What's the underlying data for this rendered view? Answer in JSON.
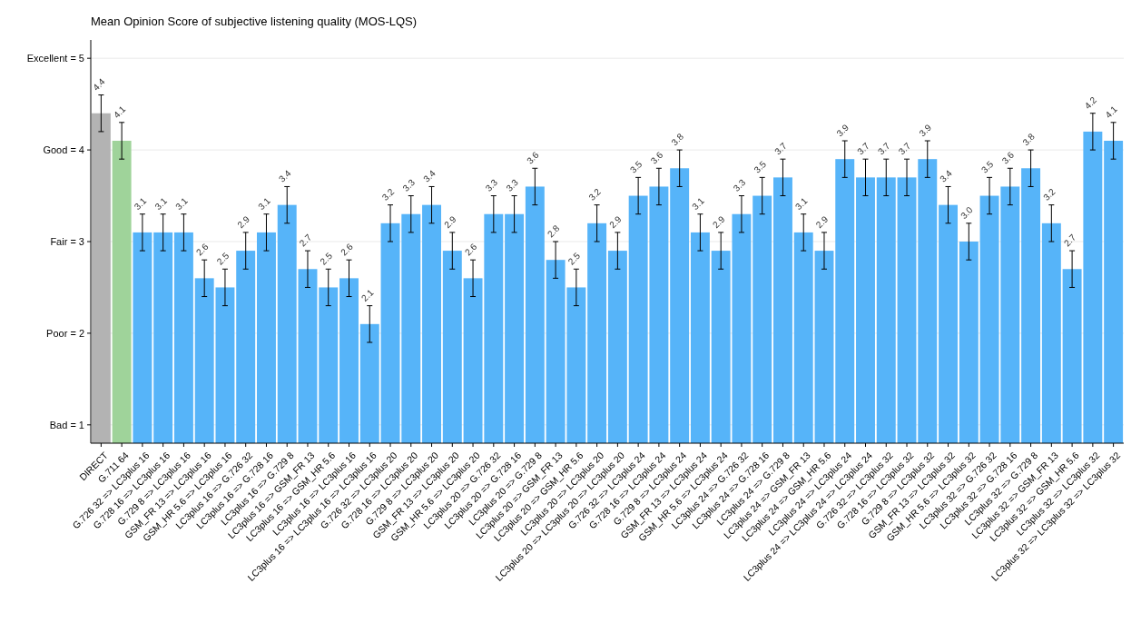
{
  "chart_data": {
    "type": "bar",
    "title": "Mean Opinion Score of subjective listening quality (MOS-LQS)",
    "categories": [
      "DIRECT",
      "G.711 64",
      "G.726 32 => LC3plus 16",
      "G.728 16 => LC3plus 16",
      "G.729 8 => LC3plus 16",
      "GSM_FR 13 => LC3plus 16",
      "GSM_HR 5.6 => LC3plus 16",
      "LC3plus 16 => G.726 32",
      "LC3plus 16 => G.728 16",
      "LC3plus 16 => G.729 8",
      "LC3plus 16 => GSM_FR 13",
      "LC3plus 16 => GSM_HR 5.6",
      "LC3plus 16 => LC3plus 16",
      "LC3plus 16 => LC3plus 16 => LC3plus 16",
      "G.726 32 => LC3plus 20",
      "G.728 16 => LC3plus 20",
      "G.729 8 => LC3plus 20",
      "GSM_FR 13 => LC3plus 20",
      "GSM_HR 5.6 => LC3plus 20",
      "LC3plus 20 => G.726 32",
      "LC3plus 20 => G.728 16",
      "LC3plus 20 => G.729 8",
      "LC3plus 20 => GSM_FR 13",
      "LC3plus 20 => GSM_HR 5.6",
      "LC3plus 20 => LC3plus 20",
      "LC3plus 20 => LC3plus 20 => LC3plus 20",
      "G.726 32 => LC3plus 24",
      "G.728 16 => LC3plus 24",
      "G.729 8 => LC3plus 24",
      "GSM_FR 13 => LC3plus 24",
      "GSM_HR 5.6 => LC3plus 24",
      "LC3plus 24 => G.726 32",
      "LC3plus 24 => G.728 16",
      "LC3plus 24 => G.729 8",
      "LC3plus 24 => GSM_FR 13",
      "LC3plus 24 => GSM_HR 5.6",
      "LC3plus 24 => LC3plus 24",
      "LC3plus 24 => LC3plus 24 => LC3plus 24",
      "G.726 32 => LC3plus 32",
      "G.728 16 => LC3plus 32",
      "G.729 8 => LC3plus 32",
      "GSM_FR 13 => LC3plus 32",
      "GSM_HR 5.6 => LC3plus 32",
      "LC3plus 32 => G.726 32",
      "LC3plus 32 => G.728 16",
      "LC3plus 32 => G.729 8",
      "LC3plus 32 => GSM_FR 13",
      "LC3plus 32 => GSM_HR 5.6",
      "LC3plus 32 => LC3plus 32",
      "LC3plus 32 => LC3plus 32 => LC3plus 32"
    ],
    "values": [
      4.4,
      4.1,
      3.1,
      3.1,
      3.1,
      2.6,
      2.5,
      2.9,
      3.1,
      3.4,
      2.7,
      2.5,
      2.6,
      2.1,
      3.2,
      3.3,
      3.4,
      2.9,
      2.6,
      3.3,
      3.3,
      3.6,
      2.8,
      2.5,
      3.2,
      2.9,
      3.5,
      3.6,
      3.8,
      3.1,
      2.9,
      3.3,
      3.5,
      3.7,
      3.1,
      2.9,
      3.9,
      3.7,
      3.7,
      3.7,
      3.9,
      3.4,
      3.0,
      3.5,
      3.6,
      3.8,
      3.2,
      2.7,
      4.2,
      4.1
    ],
    "value_labels": [
      "4.4",
      "4.1",
      "3.1",
      "3.1",
      "3.1",
      "2.6",
      "2.5",
      "2.9",
      "3.1",
      "3.4",
      "2.7",
      "2.5",
      "2.6",
      "2.1",
      "3.2",
      "3.3",
      "3.4",
      "2.9",
      "2.6",
      "3.3",
      "3.3",
      "3.6",
      "2.8",
      "2.5",
      "3.2",
      "2.9",
      "3.5",
      "3.6",
      "3.8",
      "3.1",
      "2.9",
      "3.3",
      "3.5",
      "3.7",
      "3.1",
      "2.9",
      "3.9",
      "3.7",
      "3.7",
      "3.7",
      "3.9",
      "3.4",
      "3.0",
      "3.5",
      "3.6",
      "3.8",
      "3.2",
      "2.7",
      "4.2",
      "4.1"
    ],
    "errors": [
      0.2,
      0.2,
      0.2,
      0.2,
      0.2,
      0.2,
      0.2,
      0.2,
      0.2,
      0.2,
      0.2,
      0.2,
      0.2,
      0.2,
      0.2,
      0.2,
      0.2,
      0.2,
      0.2,
      0.2,
      0.2,
      0.2,
      0.2,
      0.2,
      0.2,
      0.2,
      0.2,
      0.2,
      0.2,
      0.2,
      0.2,
      0.2,
      0.2,
      0.2,
      0.2,
      0.2,
      0.2,
      0.2,
      0.2,
      0.2,
      0.2,
      0.2,
      0.2,
      0.2,
      0.2,
      0.2,
      0.2,
      0.2,
      0.2,
      0.2
    ],
    "colors": [
      "#b3b3b3",
      "#9fd39a",
      "#56b4f9",
      "#56b4f9",
      "#56b4f9",
      "#56b4f9",
      "#56b4f9",
      "#56b4f9",
      "#56b4f9",
      "#56b4f9",
      "#56b4f9",
      "#56b4f9",
      "#56b4f9",
      "#56b4f9",
      "#56b4f9",
      "#56b4f9",
      "#56b4f9",
      "#56b4f9",
      "#56b4f9",
      "#56b4f9",
      "#56b4f9",
      "#56b4f9",
      "#56b4f9",
      "#56b4f9",
      "#56b4f9",
      "#56b4f9",
      "#56b4f9",
      "#56b4f9",
      "#56b4f9",
      "#56b4f9",
      "#56b4f9",
      "#56b4f9",
      "#56b4f9",
      "#56b4f9",
      "#56b4f9",
      "#56b4f9",
      "#56b4f9",
      "#56b4f9",
      "#56b4f9",
      "#56b4f9",
      "#56b4f9",
      "#56b4f9",
      "#56b4f9",
      "#56b4f9",
      "#56b4f9",
      "#56b4f9",
      "#56b4f9",
      "#56b4f9",
      "#56b4f9",
      "#56b4f9"
    ],
    "ylim": [
      0.8,
      5.2
    ],
    "yticks": [
      {
        "value": 1,
        "label": "Bad = 1"
      },
      {
        "value": 2,
        "label": "Poor = 2"
      },
      {
        "value": 3,
        "label": "Fair = 3"
      },
      {
        "value": 4,
        "label": "Good = 4"
      },
      {
        "value": 5,
        "label": "Excellent = 5"
      }
    ],
    "grid": "y"
  }
}
